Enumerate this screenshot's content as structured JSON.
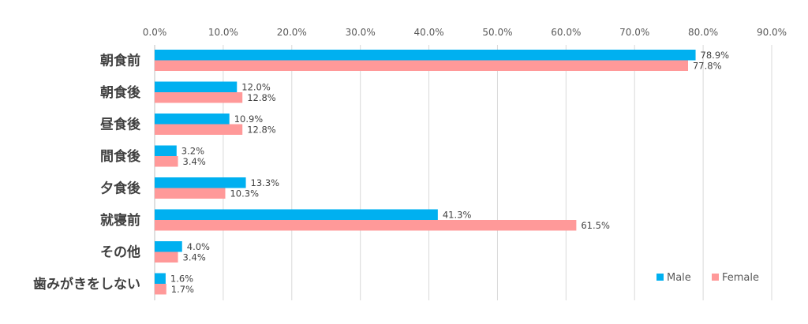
{
  "chart_data": {
    "type": "bar",
    "orientation": "horizontal",
    "categories": [
      "朝食前",
      "朝食後",
      "昼食後",
      "間食後",
      "夕食後",
      "就寝前",
      "その他",
      "歯みがきをしない"
    ],
    "series": [
      {
        "name": "Male",
        "color": "#00B0F0",
        "values": [
          78.9,
          12.0,
          10.9,
          3.2,
          13.3,
          41.3,
          4.0,
          1.6
        ],
        "labels": [
          "78.9%",
          "12.0%",
          "10.9%",
          "3.2%",
          "13.3%",
          "41.3%",
          "4.0%",
          "1.6%"
        ]
      },
      {
        "name": "Female",
        "color": "#FF9999",
        "values": [
          77.8,
          12.8,
          12.8,
          3.4,
          10.3,
          61.5,
          3.4,
          1.7
        ],
        "labels": [
          "77.8%",
          "12.8%",
          "12.8%",
          "3.4%",
          "10.3%",
          "61.5%",
          "3.4%",
          "1.7%"
        ]
      }
    ],
    "xlim": [
      0,
      90
    ],
    "xticks": [
      "0.0%",
      "10.0%",
      "20.0%",
      "30.0%",
      "40.0%",
      "50.0%",
      "60.0%",
      "70.0%",
      "80.0%",
      "90.0%"
    ],
    "axis_position": "top",
    "grid": true,
    "legend_position": "bottom-right"
  }
}
